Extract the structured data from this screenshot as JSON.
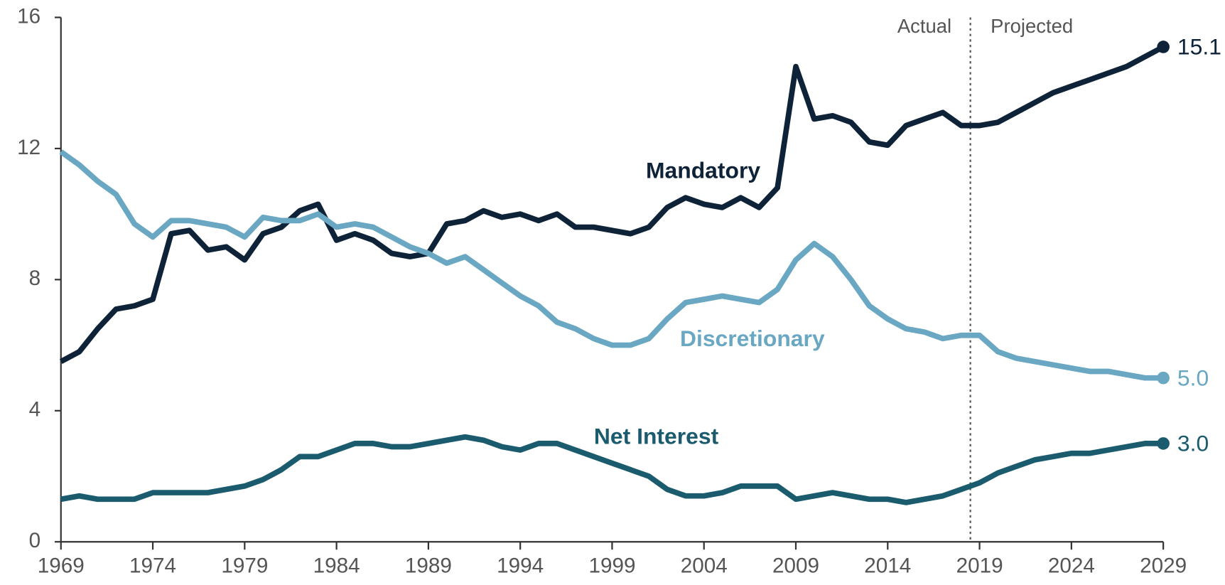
{
  "chart_data": {
    "type": "line",
    "annotations": [
      "Actual",
      "Projected"
    ],
    "boundary_x": 2018.5,
    "x": [
      1969,
      1970,
      1971,
      1972,
      1973,
      1974,
      1975,
      1976,
      1977,
      1978,
      1979,
      1980,
      1981,
      1982,
      1983,
      1984,
      1985,
      1986,
      1987,
      1988,
      1989,
      1990,
      1991,
      1992,
      1993,
      1994,
      1995,
      1996,
      1997,
      1998,
      1999,
      2000,
      2001,
      2002,
      2003,
      2004,
      2005,
      2006,
      2007,
      2008,
      2009,
      2010,
      2011,
      2012,
      2013,
      2014,
      2015,
      2016,
      2017,
      2018,
      2019,
      2020,
      2021,
      2022,
      2023,
      2024,
      2025,
      2026,
      2027,
      2028,
      2029
    ],
    "xlim": [
      1969,
      2029
    ],
    "xticks": [
      1969,
      1974,
      1979,
      1984,
      1989,
      1994,
      1999,
      2004,
      2009,
      2014,
      2019,
      2024,
      2029
    ],
    "ylim": [
      0,
      16
    ],
    "yticks": [
      0,
      4,
      8,
      12,
      16
    ],
    "series": [
      {
        "name": "Mandatory",
        "color": "#0e2238",
        "values": [
          5.5,
          5.8,
          6.5,
          7.1,
          7.2,
          7.4,
          9.4,
          9.5,
          8.9,
          9.0,
          8.6,
          9.4,
          9.6,
          10.1,
          10.3,
          9.2,
          9.4,
          9.2,
          8.8,
          8.7,
          8.8,
          9.7,
          9.8,
          10.1,
          9.9,
          10.0,
          9.8,
          10.0,
          9.6,
          9.6,
          9.5,
          9.4,
          9.6,
          10.2,
          10.5,
          10.3,
          10.2,
          10.5,
          10.2,
          10.8,
          14.5,
          12.9,
          13.0,
          12.8,
          12.2,
          12.1,
          12.7,
          12.9,
          13.1,
          12.7,
          12.7,
          12.8,
          13.1,
          13.4,
          13.7,
          13.9,
          14.1,
          14.3,
          14.5,
          14.8,
          15.1
        ],
        "value_labels": [
          null,
          null,
          null,
          null,
          null,
          null,
          null,
          null,
          null,
          null,
          null,
          null,
          null,
          null,
          null,
          null,
          null,
          null,
          null,
          null,
          null,
          null,
          null,
          null,
          null,
          null,
          null,
          null,
          null,
          null,
          null,
          null,
          null,
          null,
          null,
          null,
          null,
          null,
          null,
          null,
          null,
          null,
          null,
          null,
          null,
          null,
          null,
          null,
          null,
          null,
          null,
          null,
          null,
          null,
          null,
          null,
          null,
          null,
          null,
          null,
          "15.1"
        ]
      },
      {
        "name": "Discretionary",
        "color": "#69a7c2",
        "values": [
          11.9,
          11.5,
          11.0,
          10.6,
          9.7,
          9.3,
          9.8,
          9.8,
          9.7,
          9.6,
          9.3,
          9.9,
          9.8,
          9.8,
          10.0,
          9.6,
          9.7,
          9.6,
          9.3,
          9.0,
          8.8,
          8.5,
          8.7,
          8.3,
          7.9,
          7.5,
          7.2,
          6.7,
          6.5,
          6.2,
          6.0,
          6.0,
          6.2,
          6.8,
          7.3,
          7.4,
          7.5,
          7.4,
          7.3,
          7.7,
          8.6,
          9.1,
          8.7,
          8.0,
          7.2,
          6.8,
          6.5,
          6.4,
          6.2,
          6.3,
          6.3,
          5.8,
          5.6,
          5.5,
          5.4,
          5.3,
          5.2,
          5.2,
          5.1,
          5.0,
          5.0
        ],
        "value_labels": [
          null,
          null,
          null,
          null,
          null,
          null,
          null,
          null,
          null,
          null,
          null,
          null,
          null,
          null,
          null,
          null,
          null,
          null,
          null,
          null,
          null,
          null,
          null,
          null,
          null,
          null,
          null,
          null,
          null,
          null,
          null,
          null,
          null,
          null,
          null,
          null,
          null,
          null,
          null,
          null,
          null,
          null,
          null,
          null,
          null,
          null,
          null,
          null,
          null,
          null,
          null,
          null,
          null,
          null,
          null,
          null,
          null,
          null,
          null,
          null,
          "5.0"
        ]
      },
      {
        "name": "Net Interest",
        "color": "#1b5b6e",
        "values": [
          1.3,
          1.4,
          1.3,
          1.3,
          1.3,
          1.5,
          1.5,
          1.5,
          1.5,
          1.6,
          1.7,
          1.9,
          2.2,
          2.6,
          2.6,
          2.8,
          3.0,
          3.0,
          2.9,
          2.9,
          3.0,
          3.1,
          3.2,
          3.1,
          2.9,
          2.8,
          3.0,
          3.0,
          2.8,
          2.6,
          2.4,
          2.2,
          2.0,
          1.6,
          1.4,
          1.4,
          1.5,
          1.7,
          1.7,
          1.7,
          1.3,
          1.4,
          1.5,
          1.4,
          1.3,
          1.3,
          1.2,
          1.3,
          1.4,
          1.6,
          1.8,
          2.1,
          2.3,
          2.5,
          2.6,
          2.7,
          2.7,
          2.8,
          2.9,
          3.0,
          3.0
        ],
        "value_labels": [
          null,
          null,
          null,
          null,
          null,
          null,
          null,
          null,
          null,
          null,
          null,
          null,
          null,
          null,
          null,
          null,
          null,
          null,
          null,
          null,
          null,
          null,
          null,
          null,
          null,
          null,
          null,
          null,
          null,
          null,
          null,
          null,
          null,
          null,
          null,
          null,
          null,
          null,
          null,
          null,
          null,
          null,
          null,
          null,
          null,
          null,
          null,
          null,
          null,
          null,
          null,
          null,
          null,
          null,
          null,
          null,
          null,
          null,
          null,
          null,
          "3.0"
        ]
      }
    ]
  }
}
